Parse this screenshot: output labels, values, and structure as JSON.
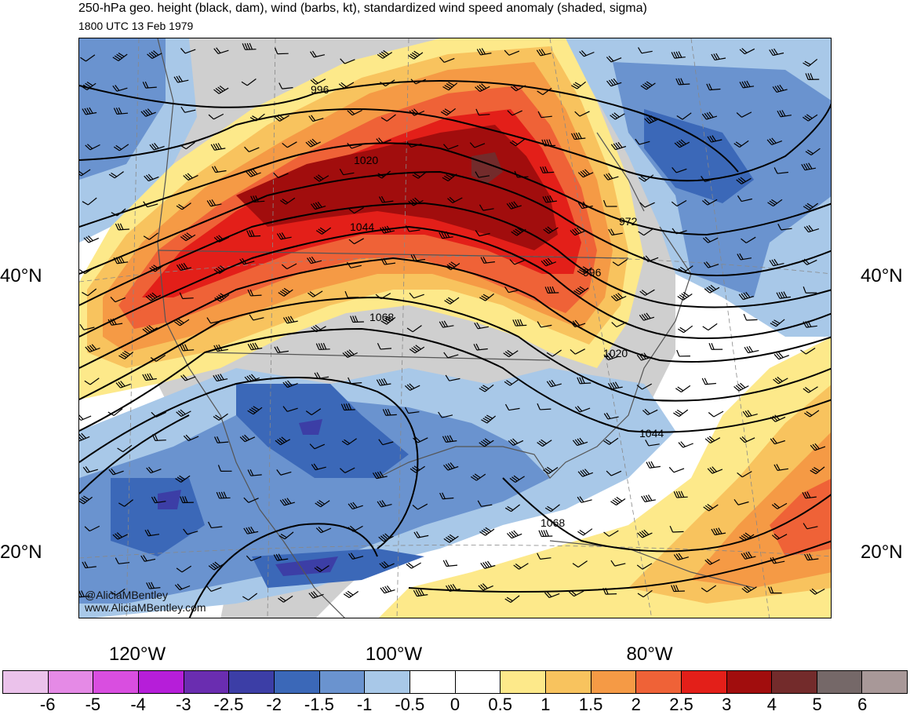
{
  "title": "250-hPa geo. height (black, dam), wind (barbs, kt), standardized wind speed anomaly (shaded, sigma)",
  "subtitle": "1800 UTC 13 Feb 1979",
  "credits": [
    "@AliciaMBentley",
    "www.AliciaMBentley.com"
  ],
  "lat_labels": [
    "40°N",
    "20°N"
  ],
  "lon_labels": [
    "120°W",
    "100°W",
    "80°W"
  ],
  "contour_labels": [
    "996",
    "1020",
    "1044",
    "972",
    "996",
    "1068",
    "1020",
    "1044",
    "1068"
  ],
  "colorbar": {
    "colors": [
      "#ebc2eb",
      "#e58ae6",
      "#d94ee0",
      "#b61ed9",
      "#6a2db0",
      "#3c3ea6",
      "#3b68b8",
      "#6a93cf",
      "#a8c8e8",
      "#ffffff",
      "#ffffff",
      "#fde98a",
      "#f8c35e",
      "#f59a45",
      "#ef6237",
      "#e31f19",
      "#a10d0d",
      "#732b2b",
      "#756868",
      "#a89898"
    ],
    "labels": [
      "-6",
      "-5",
      "-4",
      "-3",
      "-2.5",
      "-2",
      "-1.5",
      "-1",
      "-0.5",
      "0",
      "0.5",
      "1",
      "1.5",
      "2",
      "2.5",
      "3",
      "4",
      "5",
      "6"
    ]
  }
}
